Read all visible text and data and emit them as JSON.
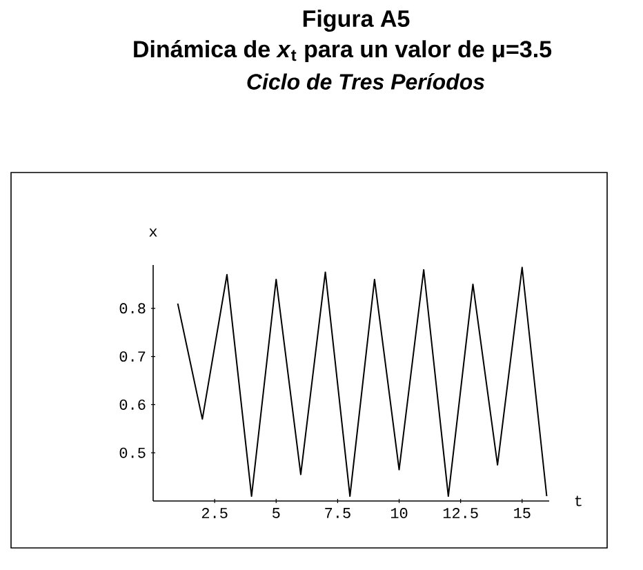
{
  "chart_data": {
    "type": "line",
    "title": "Figura A5",
    "subtitle": "Dinámica de *x*$_{t}$ para un valor de μ=3.5",
    "annotations": [
      "Ciclo de Tres Períodos"
    ],
    "xlabel": "t",
    "ylabel": "x",
    "color": "#000000",
    "x": [
      1,
      2,
      3,
      4,
      5,
      6,
      7,
      8,
      9,
      10,
      11,
      12,
      13,
      14,
      15,
      16
    ],
    "values": [
      0.81,
      0.57,
      0.87,
      0.41,
      0.86,
      0.455,
      0.875,
      0.41,
      0.86,
      0.465,
      0.88,
      0.41,
      0.85,
      0.475,
      0.885,
      0.41
    ],
    "xlim": [
      0,
      16.1
    ],
    "ylim": [
      0.4,
      0.89
    ],
    "xticks": [
      2.5,
      5,
      7.5,
      10,
      12.5,
      15
    ],
    "yticks": [
      0.5,
      0.6,
      0.7,
      0.8
    ]
  }
}
